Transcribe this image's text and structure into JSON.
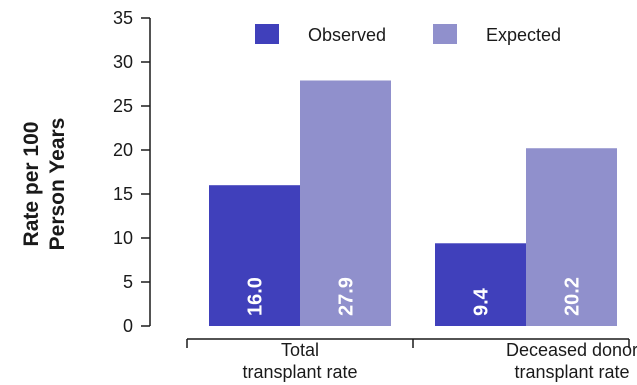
{
  "chart_data": {
    "type": "bar",
    "categories": [
      "Total transplant rate",
      "Deceased donor transplant rate"
    ],
    "category_lines": [
      [
        "Total",
        "transplant rate"
      ],
      [
        "Deceased donor",
        "transplant rate"
      ]
    ],
    "series": [
      {
        "name": "Observed",
        "values": [
          16.0,
          9.4
        ],
        "labels": [
          "16.0",
          "9.4"
        ],
        "color": "#4040bb"
      },
      {
        "name": "Expected",
        "values": [
          27.9,
          20.2
        ],
        "labels": [
          "27.9",
          "20.2"
        ],
        "color": "#9090cc"
      }
    ],
    "ylabel_lines": [
      "Rate per 100",
      "Person Years"
    ],
    "ylim": [
      0,
      35
    ],
    "yticks": [
      0,
      5,
      10,
      15,
      20,
      25,
      30,
      35
    ],
    "ytick_labels": [
      "0",
      "5",
      "10",
      "15",
      "20",
      "25",
      "30",
      "35"
    ],
    "grid": false,
    "legend": "top-right"
  }
}
